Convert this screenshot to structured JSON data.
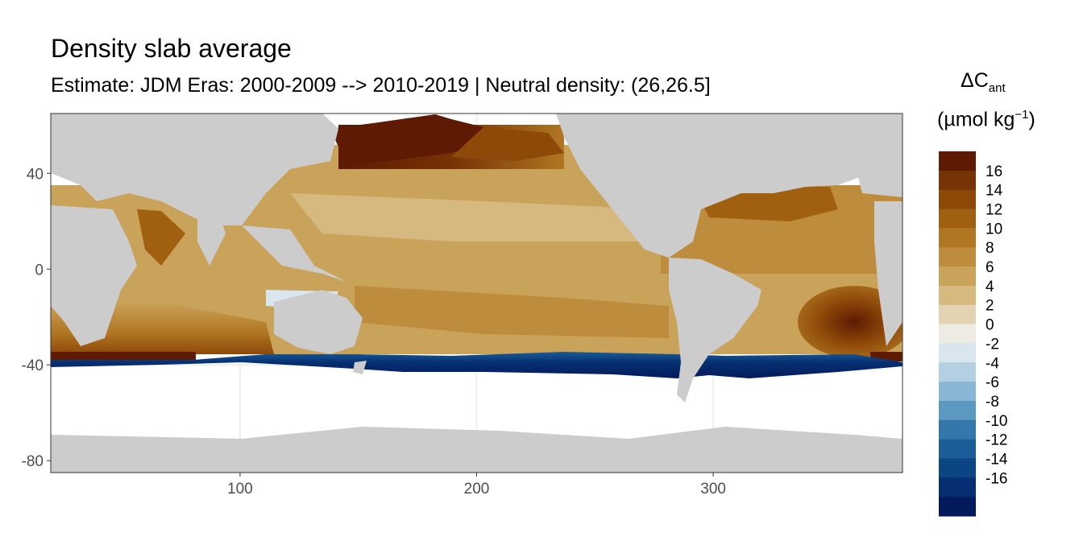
{
  "title": "Density slab average",
  "subtitle": "Estimate: JDM Eras: 2000-2009 --> 2010-2019 | Neutral density: (26,26.5]",
  "legend": {
    "title_symbol": "ΔC",
    "title_sub": "ant",
    "units_main": "(µmol kg",
    "units_sup": "−1",
    "units_close": ")",
    "labels": [
      "16",
      "14",
      "12",
      "10",
      "8",
      "6",
      "4",
      "2",
      "0",
      "-2",
      "-4",
      "-6",
      "-8",
      "-10",
      "-12",
      "-14",
      "-16"
    ],
    "colors": [
      "#5e1a03",
      "#773205",
      "#8e4808",
      "#a1600f",
      "#b07622",
      "#bd8c3c",
      "#c9a35a",
      "#d5b97f",
      "#e3d3b3",
      "#eeeae4",
      "#d9e6ee",
      "#b3d0e3",
      "#87b7d4",
      "#5c99c0",
      "#3478ab",
      "#1b5d96",
      "#0c4584",
      "#062f72",
      "#031b5c"
    ]
  },
  "axes": {
    "x_ticks": [
      100,
      200,
      300
    ],
    "y_ticks": [
      40,
      0,
      -40,
      -80
    ],
    "x_range": [
      20,
      380
    ],
    "y_range": [
      -85,
      65
    ]
  },
  "colors": {
    "land": "#cccccc",
    "no_data": "#ffffff",
    "grid": "#ebebeb"
  }
}
